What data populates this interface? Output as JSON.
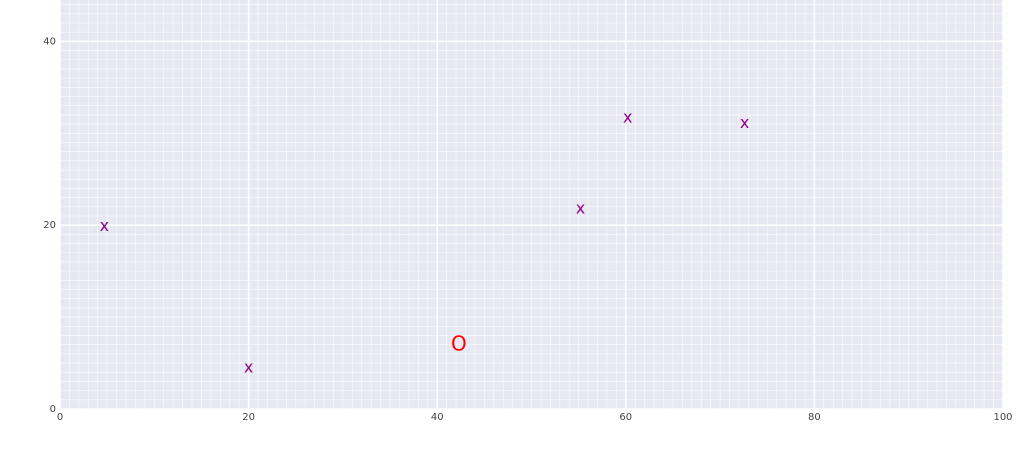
{
  "chart_data": {
    "type": "scatter",
    "title": "",
    "xlabel": "",
    "ylabel": "",
    "xlim": [
      0,
      100
    ],
    "ylim": [
      0,
      44.5
    ],
    "x_ticks": [
      0,
      20,
      40,
      60,
      80,
      100
    ],
    "y_ticks": [
      0,
      20,
      40
    ],
    "minor_grid_step": 1,
    "grid": true,
    "background_color": "#e8e8f2",
    "grid_color": "#ffffff",
    "series": [
      {
        "marker": "x",
        "color": "#8b008b",
        "points": [
          {
            "x": 4.7,
            "y": 19.9
          },
          {
            "x": 20.0,
            "y": 4.5
          },
          {
            "x": 55.2,
            "y": 21.8
          },
          {
            "x": 60.2,
            "y": 31.7
          },
          {
            "x": 72.6,
            "y": 31.1
          }
        ]
      },
      {
        "marker": "o",
        "color": "#ff0000",
        "points": [
          {
            "x": 42.3,
            "y": 7.1
          }
        ]
      }
    ]
  }
}
